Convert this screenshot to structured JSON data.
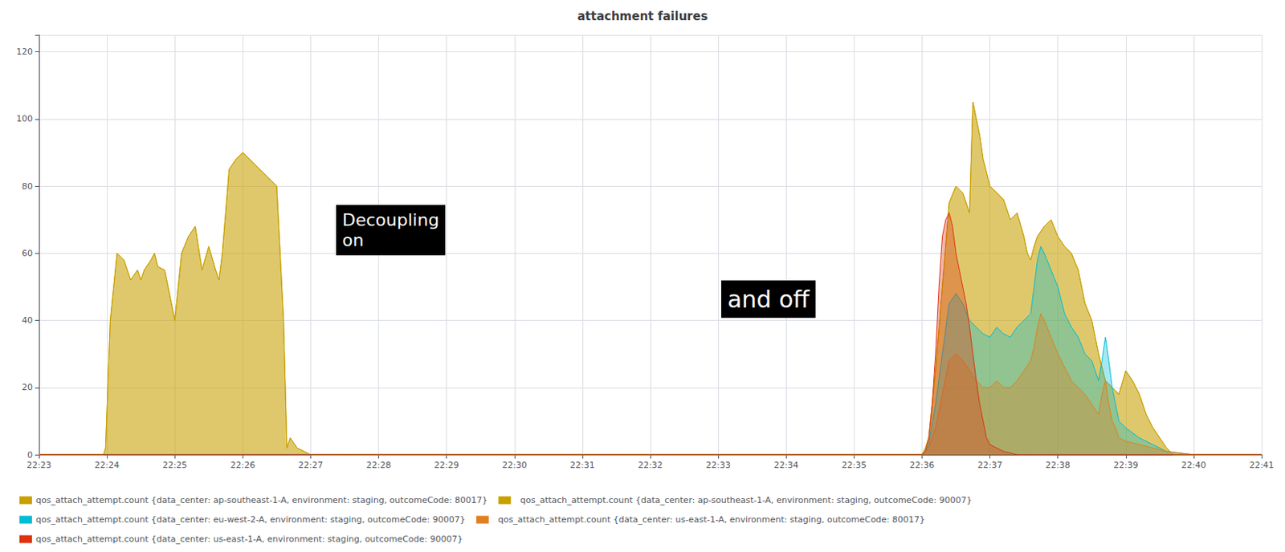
{
  "chart_data": {
    "type": "area",
    "title": "attachment failures",
    "xlim": [
      0,
      18
    ],
    "xticks": [
      {
        "value": 0,
        "label": "22:23"
      },
      {
        "value": 1,
        "label": "22:24"
      },
      {
        "value": 2,
        "label": "22:25"
      },
      {
        "value": 3,
        "label": "22:26"
      },
      {
        "value": 4,
        "label": "22:27"
      },
      {
        "value": 5,
        "label": "22:28"
      },
      {
        "value": 6,
        "label": "22:29"
      },
      {
        "value": 7,
        "label": "22:30"
      },
      {
        "value": 8,
        "label": "22:31"
      },
      {
        "value": 9,
        "label": "22:32"
      },
      {
        "value": 10,
        "label": "22:33"
      },
      {
        "value": 11,
        "label": "22:34"
      },
      {
        "value": 12,
        "label": "22:35"
      },
      {
        "value": 13,
        "label": "22:36"
      },
      {
        "value": 14,
        "label": "22:37"
      },
      {
        "value": 15,
        "label": "22:38"
      },
      {
        "value": 16,
        "label": "22:39"
      },
      {
        "value": 17,
        "label": "22:40"
      },
      {
        "value": 18,
        "label": "22:41"
      }
    ],
    "ylim": [
      0,
      125
    ],
    "yticks": [
      0,
      20,
      40,
      60,
      80,
      100,
      120
    ],
    "grid": true,
    "legend": "bottom",
    "annotations": [
      "Decoupling\non",
      "and off"
    ],
    "series": [
      {
        "name": "qos_attach_attempt.count {data_center: ap-southeast-1-A, environment: staging, outcomeCode: 80017}",
        "color": "#c8a000",
        "x": [
          0,
          0.95,
          0.98,
          1.05,
          1.15,
          1.25,
          1.35,
          1.45,
          1.5,
          1.55,
          1.65,
          1.7,
          1.75,
          1.85,
          2.0,
          2.1,
          2.2,
          2.3,
          2.4,
          2.5,
          2.6,
          2.65,
          2.7,
          2.8,
          2.9,
          3.0,
          3.1,
          3.2,
          3.3,
          3.4,
          3.5,
          3.6,
          3.65,
          3.7,
          3.8,
          3.9,
          4.0,
          4.1,
          4.2,
          4.3,
          4.4,
          4.5,
          4.55,
          4.6,
          4.7,
          5.0,
          13.0,
          13.05,
          13.1,
          13.2,
          13.3,
          13.4,
          13.5,
          13.6,
          13.7,
          13.75,
          13.8,
          13.85,
          13.9,
          14.0,
          14.1,
          14.2,
          14.3,
          14.4,
          14.5,
          14.55,
          14.6,
          14.65,
          14.7,
          14.8,
          14.9,
          15.0,
          15.1,
          15.2,
          15.3,
          15.4,
          15.5,
          15.6,
          15.7,
          15.8,
          15.9,
          16.0,
          16.1,
          16.2,
          16.3,
          16.4,
          16.5,
          16.6,
          16.65,
          16.7,
          16.8,
          17.0,
          18.0
        ],
        "values": [
          0,
          0,
          2,
          40,
          60,
          58,
          52,
          55,
          52,
          55,
          58,
          60,
          56,
          55,
          40,
          60,
          65,
          68,
          55,
          62,
          55,
          52,
          60,
          85,
          88,
          90,
          88,
          86,
          84,
          82,
          80,
          40,
          2,
          5,
          2,
          1,
          0,
          0,
          0,
          0,
          0,
          0,
          0,
          0,
          0,
          0,
          0,
          2,
          5,
          25,
          50,
          75,
          80,
          78,
          72,
          105,
          100,
          95,
          88,
          80,
          78,
          76,
          70,
          72,
          65,
          60,
          58,
          62,
          65,
          68,
          70,
          65,
          62,
          60,
          55,
          45,
          40,
          30,
          22,
          20,
          18,
          25,
          22,
          18,
          12,
          8,
          5,
          2,
          1,
          0,
          0,
          0,
          0
        ]
      },
      {
        "name": "  qos_attach_attempt.count {data_center: ap-southeast-1-A, environment: staging, outcomeCode: 90007}",
        "color": "#c8a000",
        "x": [
          0,
          0.95,
          0.98,
          1.05,
          1.15,
          1.25,
          1.35,
          1.45,
          1.5,
          1.55,
          1.65,
          1.7,
          1.75,
          1.85,
          2.0,
          2.1,
          2.2,
          2.3,
          2.4,
          2.5,
          2.6,
          2.65,
          2.7,
          2.8,
          2.9,
          3.0,
          3.1,
          3.2,
          3.3,
          3.4,
          3.5,
          3.6,
          3.65,
          3.7,
          3.8,
          3.9,
          4.0,
          4.1,
          4.2,
          4.3,
          4.4,
          4.5,
          4.55,
          4.6,
          4.7,
          5.0,
          13.0,
          13.05,
          13.1,
          13.2,
          13.3,
          13.4,
          13.5,
          13.6,
          13.7,
          13.75,
          13.8,
          13.85,
          13.9,
          14.0,
          14.1,
          14.2,
          14.3,
          14.4,
          14.5,
          14.55,
          14.6,
          14.65,
          14.7,
          14.8,
          14.9,
          15.0,
          15.1,
          15.2,
          15.3,
          15.4,
          15.5,
          15.6,
          15.7,
          15.8,
          15.9,
          16.0,
          16.1,
          16.2,
          16.3,
          16.4,
          16.5,
          16.6,
          16.65,
          16.7,
          16.8,
          17.0,
          18.0
        ],
        "values": [
          0,
          0,
          2,
          40,
          60,
          58,
          52,
          55,
          52,
          55,
          58,
          60,
          56,
          55,
          40,
          60,
          65,
          68,
          55,
          62,
          55,
          52,
          60,
          85,
          88,
          90,
          88,
          86,
          84,
          82,
          80,
          40,
          2,
          5,
          2,
          1,
          0,
          0,
          0,
          0,
          0,
          0,
          0,
          0,
          0,
          0,
          0,
          2,
          5,
          25,
          50,
          75,
          80,
          78,
          72,
          105,
          100,
          95,
          88,
          80,
          78,
          76,
          70,
          72,
          65,
          60,
          58,
          62,
          65,
          68,
          70,
          65,
          62,
          60,
          55,
          45,
          40,
          30,
          22,
          20,
          18,
          25,
          22,
          18,
          12,
          8,
          5,
          2,
          1,
          0,
          0,
          0,
          0
        ]
      },
      {
        "name": "qos_attach_attempt.count {data_center: eu-west-2-A, environment: staging, outcomeCode: 90007}",
        "color": "#00bcd4",
        "x": [
          0,
          13.0,
          13.05,
          13.1,
          13.2,
          13.3,
          13.4,
          13.5,
          13.6,
          13.7,
          13.8,
          13.9,
          14.0,
          14.1,
          14.2,
          14.3,
          14.4,
          14.5,
          14.6,
          14.65,
          14.7,
          14.75,
          14.8,
          14.9,
          15.0,
          15.1,
          15.2,
          15.3,
          15.4,
          15.5,
          15.6,
          15.65,
          15.7,
          15.75,
          15.8,
          15.85,
          15.9,
          16.0,
          16.2,
          16.4,
          16.6,
          17.0,
          18.0
        ],
        "values": [
          0,
          0,
          1,
          3,
          15,
          30,
          45,
          48,
          45,
          40,
          38,
          36,
          35,
          38,
          36,
          35,
          38,
          40,
          42,
          50,
          58,
          62,
          60,
          55,
          50,
          42,
          38,
          35,
          30,
          28,
          22,
          28,
          35,
          28,
          20,
          15,
          10,
          8,
          5,
          3,
          1,
          0,
          0
        ]
      },
      {
        "name": "  qos_attach_attempt.count {data_center: us-east-1-A, environment: staging, outcomeCode: 80017}",
        "color": "#e08020",
        "x": [
          0,
          13.0,
          13.05,
          13.1,
          13.2,
          13.3,
          13.4,
          13.5,
          13.6,
          13.7,
          13.8,
          13.9,
          14.0,
          14.1,
          14.2,
          14.3,
          14.4,
          14.5,
          14.6,
          14.65,
          14.7,
          14.75,
          14.8,
          14.9,
          15.0,
          15.1,
          15.2,
          15.3,
          15.4,
          15.5,
          15.6,
          15.65,
          15.7,
          15.75,
          15.8,
          15.85,
          15.9,
          16.0,
          16.2,
          16.4,
          16.6,
          17.0,
          18.0
        ],
        "values": [
          0,
          0,
          1,
          2,
          8,
          18,
          28,
          30,
          28,
          25,
          22,
          20,
          20,
          22,
          20,
          20,
          22,
          25,
          28,
          32,
          38,
          42,
          40,
          35,
          30,
          26,
          22,
          20,
          18,
          15,
          12,
          18,
          22,
          15,
          10,
          8,
          5,
          4,
          3,
          2,
          1,
          0,
          0
        ]
      },
      {
        "name": "qos_attach_attempt.count {data_center: us-east-1-A, environment: staging, outcomeCode: 90007}",
        "color": "#dd3311",
        "x": [
          0,
          13.0,
          13.05,
          13.1,
          13.15,
          13.2,
          13.25,
          13.3,
          13.35,
          13.4,
          13.45,
          13.5,
          13.55,
          13.6,
          13.65,
          13.7,
          13.75,
          13.8,
          13.85,
          13.9,
          13.95,
          14.0,
          14.1,
          14.2,
          14.4,
          14.6,
          15.0,
          18.0
        ],
        "values": [
          0,
          0,
          1,
          5,
          15,
          30,
          50,
          65,
          70,
          72,
          68,
          60,
          55,
          50,
          45,
          38,
          30,
          22,
          15,
          10,
          5,
          3,
          2,
          1,
          0,
          0,
          0,
          0
        ]
      }
    ]
  }
}
